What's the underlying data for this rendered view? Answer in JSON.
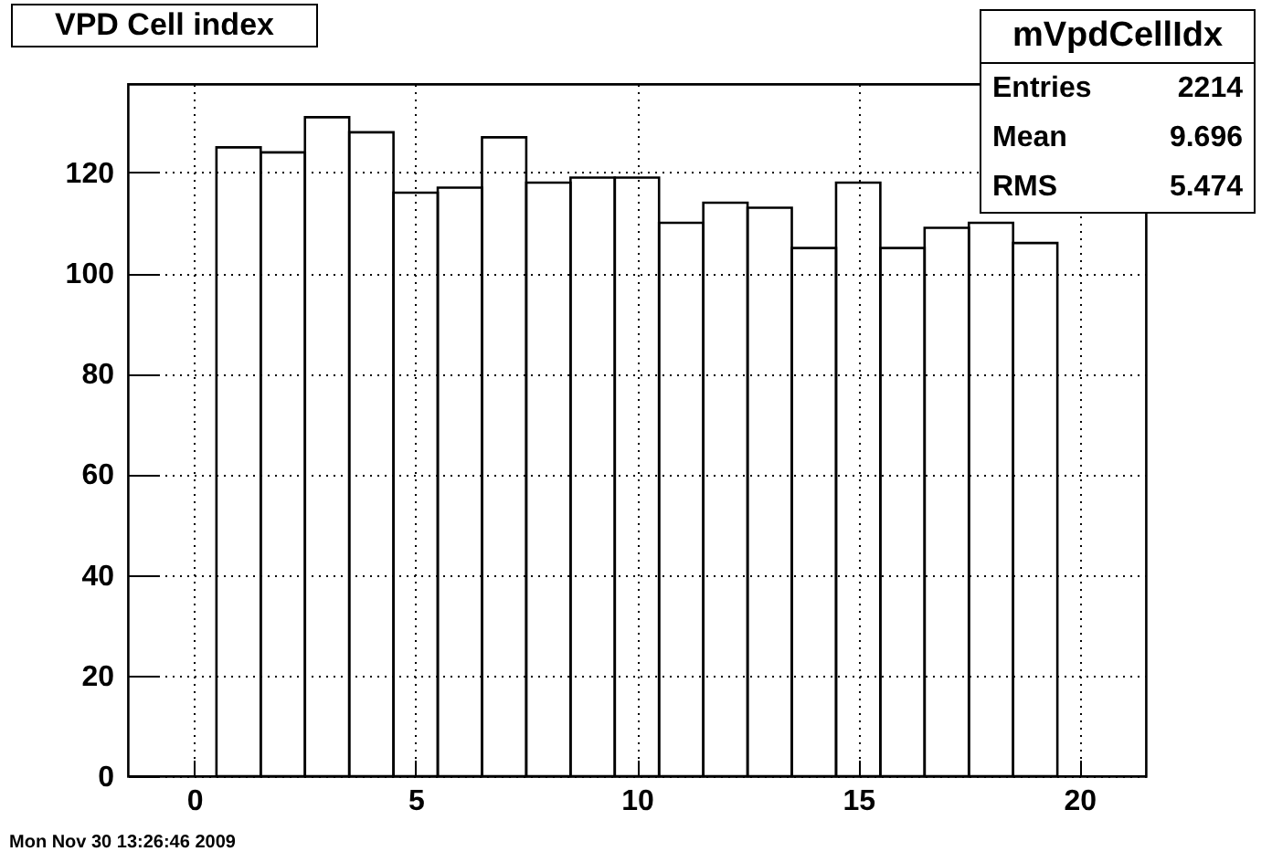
{
  "chart_data": {
    "type": "histogram",
    "title": "VPD Cell index",
    "bins": [
      0.5,
      1.5,
      2.5,
      3.5,
      4.5,
      5.5,
      6.5,
      7.5,
      8.5,
      9.5,
      10.5,
      11.5,
      12.5,
      13.5,
      14.5,
      15.5,
      16.5,
      17.5,
      18.5,
      19.5
    ],
    "values": [
      125,
      124,
      131,
      128,
      116,
      117,
      127,
      118,
      119,
      119,
      110,
      114,
      113,
      105,
      118,
      105,
      109,
      110,
      106
    ],
    "color": "#000000",
    "xlim": [
      -1.5,
      21.5
    ],
    "xticks": [
      0,
      5,
      10,
      15,
      20
    ],
    "ylim": [
      0,
      137.6
    ],
    "yticks": [
      0,
      20,
      40,
      60,
      80,
      100,
      120
    ],
    "grid": true,
    "annotations": [
      "mVpdCellIdx",
      "Entries 2214",
      "Mean 9.696",
      "RMS 5.474",
      "Mon Nov 30 13:26:46 2009"
    ]
  }
}
